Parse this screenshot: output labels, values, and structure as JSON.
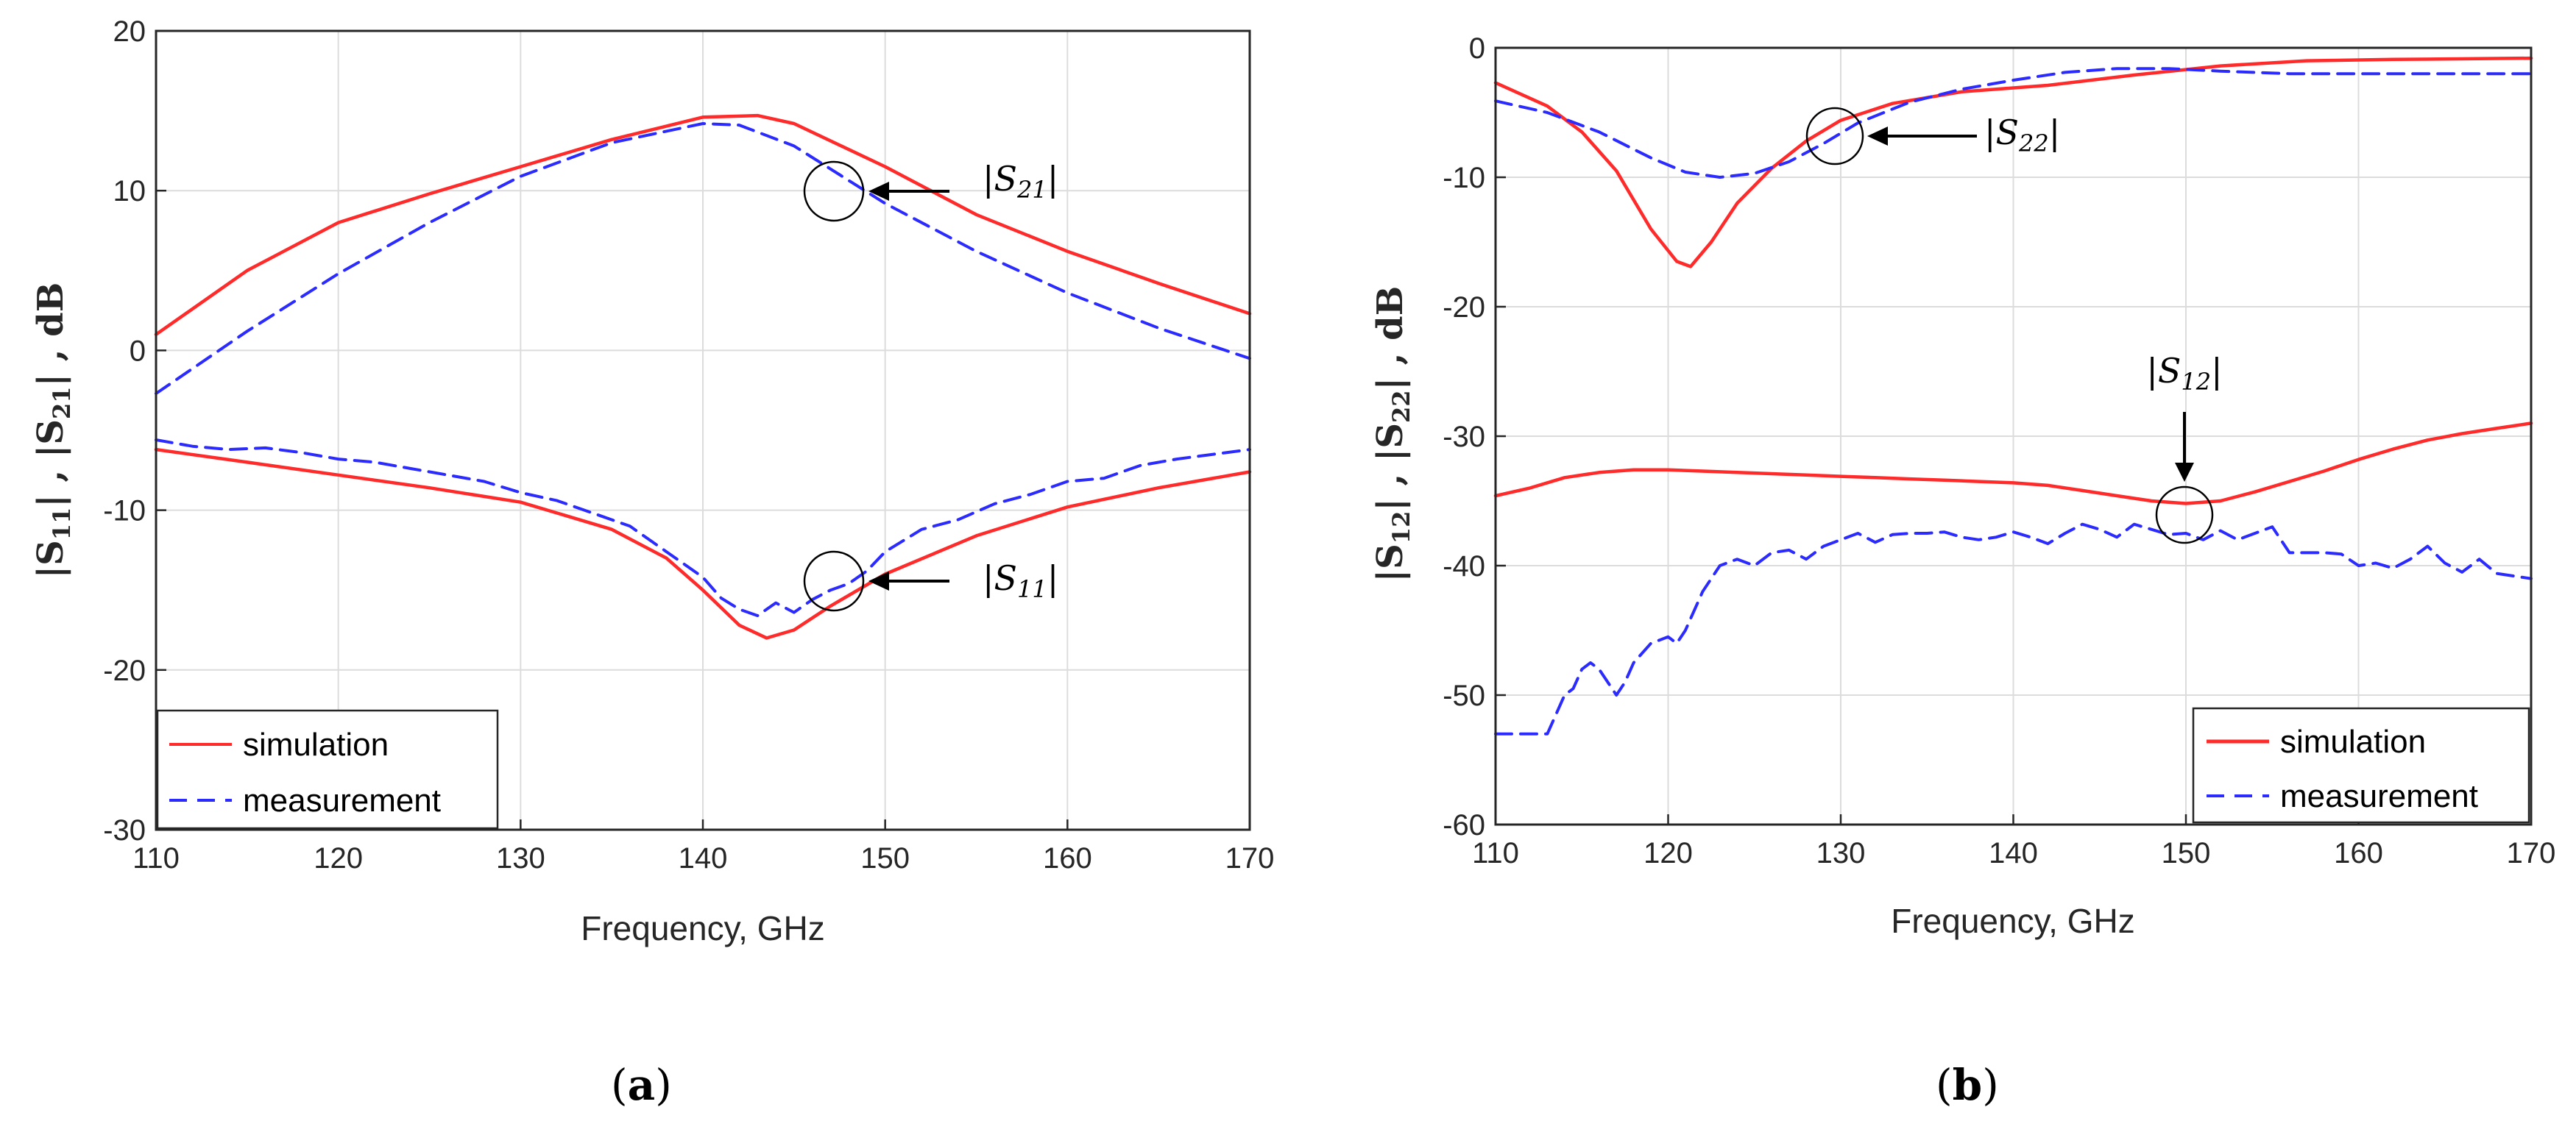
{
  "colors": {
    "simulation": "#ff2a2a",
    "measurement": "#2b2bff",
    "axis": "#262626"
  },
  "chart_data": [
    {
      "panel": "a",
      "caption": "(a)",
      "type": "line",
      "xlabel": "Frequency, GHz",
      "ylabel": "|S11| , |S21| , dB",
      "ylabel_parts": {
        "a": "|S",
        "a_sub": "11",
        "b": "| ,  |S",
        "b_sub": "21",
        "c": "| ,  dB"
      },
      "xlim": [
        110,
        170
      ],
      "ylim": [
        -30,
        20
      ],
      "xticks": [
        110,
        120,
        130,
        140,
        150,
        160,
        170
      ],
      "yticks": [
        20,
        10,
        0,
        -10,
        -20,
        -30
      ],
      "grid": true,
      "legend": [
        "simulation",
        "measurement"
      ],
      "legend_position": "bottom-left",
      "annotations": [
        {
          "text": "|S21|",
          "main": "|S",
          "sub": "21",
          "close": "|",
          "point": [
            149.5,
            10
          ]
        },
        {
          "text": "|S11|",
          "main": "|S",
          "sub": "11",
          "close": "|",
          "point": [
            149.5,
            -14.5
          ]
        }
      ],
      "series": [
        {
          "name": "simulation |S21|",
          "style": "solid",
          "x": [
            110,
            115,
            120,
            125,
            130,
            135,
            140,
            143,
            145,
            150,
            155,
            160,
            165,
            170
          ],
          "y": [
            1,
            5,
            8,
            9.8,
            11.5,
            13.2,
            14.6,
            14.7,
            14.2,
            11.5,
            8.5,
            6.2,
            4.2,
            2.3
          ]
        },
        {
          "name": "measurement |S21|",
          "style": "dashed",
          "x": [
            110,
            115,
            120,
            125,
            130,
            135,
            140,
            142,
            145,
            150,
            155,
            160,
            165,
            170
          ],
          "y": [
            -2.7,
            1.2,
            4.8,
            8,
            10.9,
            13,
            14.2,
            14.1,
            12.8,
            9.2,
            6.2,
            3.6,
            1.4,
            -0.5
          ]
        },
        {
          "name": "simulation |S11|",
          "style": "solid",
          "x": [
            110,
            115,
            120,
            125,
            130,
            135,
            138,
            140,
            142,
            143.5,
            145,
            147,
            150,
            155,
            160,
            165,
            170
          ],
          "y": [
            -6.2,
            -7,
            -7.8,
            -8.6,
            -9.5,
            -11.2,
            -13,
            -15,
            -17.2,
            -18,
            -17.5,
            -16,
            -14,
            -11.6,
            -9.8,
            -8.6,
            -7.6
          ]
        },
        {
          "name": "measurement |S11|",
          "style": "dashed",
          "x": [
            110,
            112,
            114,
            116,
            118,
            120,
            122,
            124,
            126,
            128,
            130,
            132,
            134,
            136,
            138,
            140,
            141,
            142,
            143,
            144,
            145,
            146,
            147,
            148,
            149,
            150,
            152,
            154,
            156,
            158,
            160,
            162,
            164,
            166,
            168,
            170
          ],
          "y": [
            -5.6,
            -6,
            -6.2,
            -6.1,
            -6.4,
            -6.8,
            -7,
            -7.4,
            -7.8,
            -8.2,
            -8.9,
            -9.4,
            -10.2,
            -11,
            -12.6,
            -14.2,
            -15.5,
            -16.2,
            -16.6,
            -15.8,
            -16.4,
            -15.6,
            -15,
            -14.6,
            -13.8,
            -12.6,
            -11.2,
            -10.6,
            -9.6,
            -9,
            -8.2,
            -8,
            -7.2,
            -6.8,
            -6.5,
            -6.2
          ]
        }
      ]
    },
    {
      "panel": "b",
      "caption": "(b)",
      "type": "line",
      "xlabel": "Frequency, GHz",
      "ylabel": "|S12| , |S22| , dB",
      "ylabel_parts": {
        "a": "|S",
        "a_sub": "12",
        "b": "| ,  |S",
        "b_sub": "22",
        "c": "| ,  dB"
      },
      "xlim": [
        110,
        170
      ],
      "ylim": [
        -60,
        0
      ],
      "xticks": [
        110,
        120,
        130,
        140,
        150,
        160,
        170
      ],
      "yticks": [
        0,
        -10,
        -20,
        -30,
        -40,
        -50,
        -60
      ],
      "grid": true,
      "legend": [
        "simulation",
        "measurement"
      ],
      "legend_position": "bottom-right",
      "annotations": [
        {
          "text": "|S22|",
          "main": "|S",
          "sub": "22",
          "close": "|",
          "point": [
            129,
            -7.3
          ]
        },
        {
          "text": "|S12|",
          "main": "|S",
          "sub": "12",
          "close": "|",
          "point": [
            149.5,
            -36
          ]
        }
      ],
      "series": [
        {
          "name": "simulation |S22|",
          "style": "solid",
          "x": [
            110,
            113,
            115,
            117,
            119,
            120.5,
            121.3,
            122.5,
            124,
            126,
            128,
            130,
            133,
            137,
            142,
            147,
            152,
            157,
            162,
            170
          ],
          "y": [
            -2.7,
            -4.5,
            -6.5,
            -9.5,
            -14,
            -16.5,
            -16.9,
            -15,
            -12,
            -9.3,
            -7.2,
            -5.6,
            -4.3,
            -3.4,
            -2.9,
            -2.1,
            -1.4,
            -1,
            -0.9,
            -0.8
          ]
        },
        {
          "name": "measurement |S22|",
          "style": "dashed",
          "x": [
            110,
            113,
            116,
            119,
            121,
            123,
            125,
            127,
            129,
            131,
            134,
            137,
            140,
            143,
            146,
            149,
            152,
            156,
            160,
            165,
            170
          ],
          "y": [
            -4.1,
            -5,
            -6.5,
            -8.5,
            -9.6,
            -10,
            -9.7,
            -8.8,
            -7.4,
            -5.8,
            -4.2,
            -3.2,
            -2.5,
            -1.9,
            -1.6,
            -1.6,
            -1.8,
            -2,
            -2,
            -2,
            -2
          ]
        },
        {
          "name": "simulation |S12|",
          "style": "solid",
          "x": [
            110,
            112,
            114,
            116,
            118,
            120,
            122,
            124,
            126,
            128,
            130,
            132,
            134,
            136,
            138,
            140,
            142,
            144,
            146,
            148,
            150,
            152,
            154,
            156,
            158,
            160,
            162,
            164,
            166,
            168,
            170
          ],
          "y": [
            -34.6,
            -34,
            -33.2,
            -32.8,
            -32.6,
            -32.6,
            -32.7,
            -32.8,
            -32.9,
            -33,
            -33.1,
            -33.2,
            -33.3,
            -33.4,
            -33.5,
            -33.6,
            -33.8,
            -34.2,
            -34.6,
            -35,
            -35.2,
            -35,
            -34.3,
            -33.5,
            -32.7,
            -31.8,
            -31,
            -30.3,
            -29.8,
            -29.4,
            -29
          ]
        },
        {
          "name": "measurement |S12|",
          "style": "dashed",
          "x": [
            110,
            111,
            112,
            113,
            114,
            114.5,
            115,
            115.5,
            116,
            117,
            117.5,
            118,
            119,
            120,
            120.5,
            121,
            122,
            123,
            124,
            125,
            126,
            127,
            128,
            129,
            130,
            131,
            132,
            133,
            134,
            135,
            136,
            137,
            138,
            139,
            140,
            141,
            142,
            143,
            144,
            145,
            146,
            147,
            148,
            149,
            150,
            151,
            152,
            153,
            154,
            155,
            156,
            157,
            158,
            159,
            160,
            161,
            162,
            163,
            164,
            165,
            166,
            167,
            168,
            169,
            170
          ],
          "y": [
            -53,
            -53,
            -53,
            -53,
            -50,
            -49.5,
            -48,
            -47.5,
            -48,
            -50,
            -49,
            -47.5,
            -46,
            -45.5,
            -46,
            -45,
            -42,
            -40,
            -39.5,
            -40,
            -39,
            -38.8,
            -39.5,
            -38.5,
            -38,
            -37.5,
            -38.2,
            -37.6,
            -37.5,
            -37.5,
            -37.4,
            -37.8,
            -38,
            -37.8,
            -37.4,
            -37.8,
            -38.3,
            -37.5,
            -36.8,
            -37.2,
            -37.8,
            -36.8,
            -37.2,
            -37.6,
            -37.5,
            -38,
            -37.3,
            -38,
            -37.5,
            -37,
            -39,
            -39,
            -39,
            -39.1,
            -40,
            -39.8,
            -40.2,
            -39.5,
            -38.5,
            -39.8,
            -40.5,
            -39.5,
            -40.6,
            -40.8,
            -41
          ]
        }
      ]
    }
  ]
}
